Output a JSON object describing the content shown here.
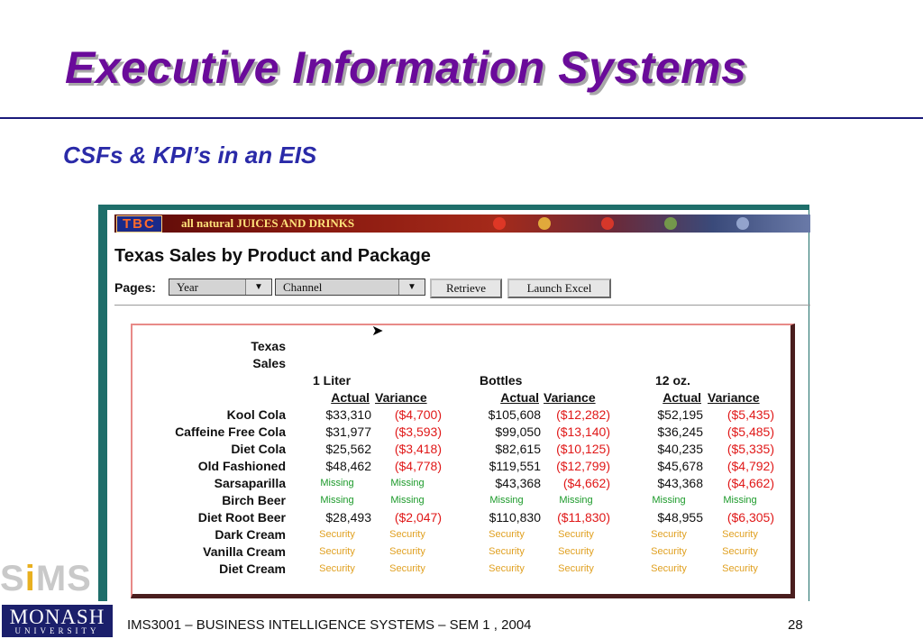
{
  "slide": {
    "title": "Executive Information Systems",
    "subtitle": "CSFs & KPI’s in an EIS",
    "footer": "IMS3001 – BUSINESS INTELLIGENCE SYSTEMS – SEM 1 , 2004",
    "page_number": "28"
  },
  "logos": {
    "sims_pre": "S",
    "sims_dot": "i",
    "sims_post": "MS",
    "monash": "MONASH",
    "university": "UNIVERSITY"
  },
  "app": {
    "banner": {
      "logo": "TBC",
      "text": "all natural JUICES AND DRINKS"
    },
    "report_title": "Texas Sales by Product and Package",
    "pages_label": "Pages:",
    "dropdowns": {
      "year": "Year",
      "channel": "Channel"
    },
    "buttons": {
      "retrieve": "Retrieve",
      "launch_excel": "Launch Excel"
    }
  },
  "report": {
    "header": {
      "line1": "Texas",
      "line2": "Sales"
    },
    "groups": [
      "1 Liter",
      "Bottles",
      "12 oz."
    ],
    "columns": [
      "Actual",
      "Variance",
      "Actual",
      "Variance",
      "Actual",
      "Variance"
    ],
    "rows": [
      {
        "label": "Kool Cola",
        "values": [
          "$33,310",
          "($4,700)",
          "$105,608",
          "($12,282)",
          "$52,195",
          "($5,435)"
        ]
      },
      {
        "label": "Caffeine Free Cola",
        "values": [
          "$31,977",
          "($3,593)",
          "$99,050",
          "($13,140)",
          "$36,245",
          "($5,485)"
        ]
      },
      {
        "label": "Diet Cola",
        "values": [
          "$25,562",
          "($3,418)",
          "$82,615",
          "($10,125)",
          "$40,235",
          "($5,335)"
        ]
      },
      {
        "label": "Old Fashioned",
        "values": [
          "$48,462",
          "($4,778)",
          "$119,551",
          "($12,799)",
          "$45,678",
          "($4,792)"
        ]
      },
      {
        "label": "Sarsaparilla",
        "values": [
          "Missing",
          "Missing",
          "$43,368",
          "($4,662)",
          "$43,368",
          "($4,662)"
        ]
      },
      {
        "label": "Birch Beer",
        "values": [
          "Missing",
          "Missing",
          "Missing",
          "Missing",
          "Missing",
          "Missing"
        ]
      },
      {
        "label": "Diet Root Beer",
        "values": [
          "$28,493",
          "($2,047)",
          "$110,830",
          "($11,830)",
          "$48,955",
          "($6,305)"
        ]
      },
      {
        "label": "Dark Cream",
        "values": [
          "Security",
          "Security",
          "Security",
          "Security",
          "Security",
          "Security"
        ]
      },
      {
        "label": "Vanilla Cream",
        "values": [
          "Security",
          "Security",
          "Security",
          "Security",
          "Security",
          "Security"
        ]
      },
      {
        "label": "Diet Cream",
        "values": [
          "Security",
          "Security",
          "Security",
          "Security",
          "Security",
          "Security"
        ]
      }
    ]
  },
  "colors": {
    "title": "#6a0b9a",
    "subtitle": "#2a2aa8",
    "negative": "#e01818",
    "missing": "#1c9a2a",
    "security": "#e0a020",
    "window_frame": "#1e6e6a"
  }
}
